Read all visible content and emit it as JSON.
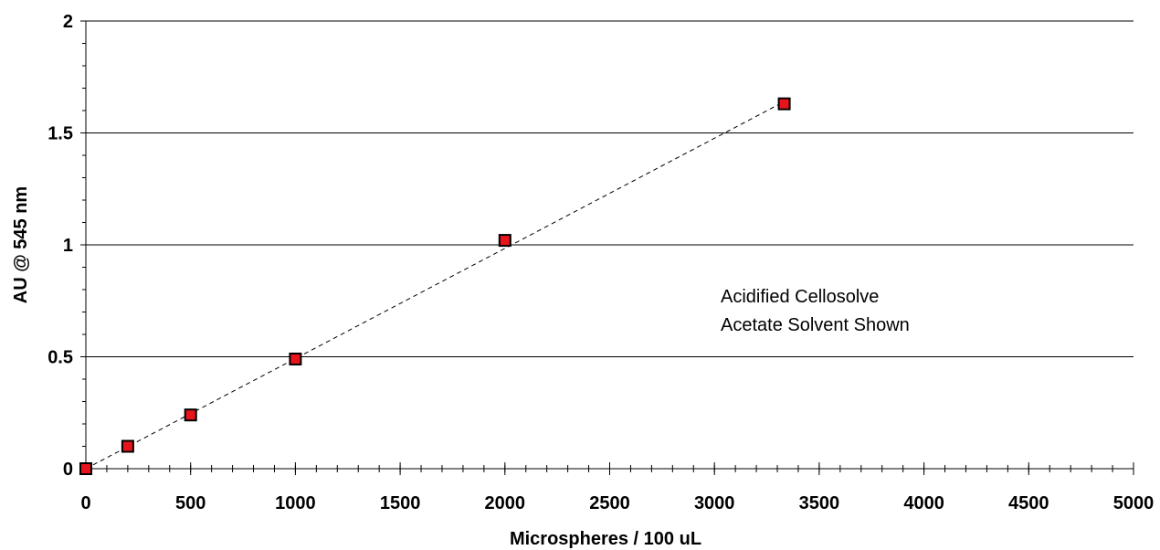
{
  "chart_data": {
    "type": "scatter",
    "xlabel": "Microspheres / 100 uL",
    "ylabel": "AU @ 545 nm",
    "xlim": [
      0,
      5000
    ],
    "ylim": [
      0,
      2
    ],
    "x_ticks": [
      "0",
      "500",
      "1000",
      "1500",
      "2000",
      "2500",
      "3000",
      "3500",
      "4000",
      "4500",
      "5000"
    ],
    "y_ticks": [
      "0",
      "0.5",
      "1",
      "1.5",
      "2"
    ],
    "grid": "horizontal",
    "series": [
      {
        "points": [
          {
            "x": 0,
            "y": 0.0
          },
          {
            "x": 200,
            "y": 0.1
          },
          {
            "x": 500,
            "y": 0.24
          },
          {
            "x": 1000,
            "y": 0.49
          },
          {
            "x": 2000,
            "y": 1.02
          },
          {
            "x": 3333,
            "y": 1.63
          }
        ],
        "marker": "square",
        "color": "#e8141c"
      }
    ],
    "trendline": {
      "style": "dashed",
      "from": {
        "x": 0,
        "y": 0.0
      },
      "to": {
        "x": 3333,
        "y": 1.64
      }
    },
    "annotation": [
      "Acidified Cellosolve",
      "Acetate Solvent Shown"
    ]
  }
}
